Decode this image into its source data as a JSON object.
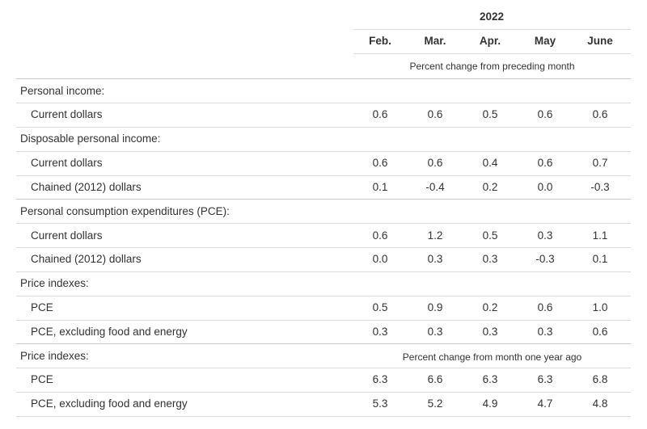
{
  "header": {
    "year": "2022",
    "months": [
      "Feb.",
      "Mar.",
      "Apr.",
      "May",
      "June"
    ],
    "subheader_mom": "Percent change from preceding month",
    "subheader_yoy": "Percent change from month one year ago"
  },
  "rows": [
    {
      "label": "Personal income:",
      "values": []
    },
    {
      "label": "Current dollars",
      "values": [
        "0.6",
        "0.6",
        "0.5",
        "0.6",
        "0.6"
      ]
    },
    {
      "label": "Disposable personal income:",
      "values": []
    },
    {
      "label": "Current dollars",
      "values": [
        "0.6",
        "0.6",
        "0.4",
        "0.6",
        "0.7"
      ]
    },
    {
      "label": "Chained (2012) dollars",
      "values": [
        "0.1",
        "-0.4",
        "0.2",
        "0.0",
        "-0.3"
      ]
    },
    {
      "label": "Personal consumption expenditures (PCE):",
      "values": []
    },
    {
      "label": "Current dollars",
      "values": [
        "0.6",
        "1.2",
        "0.5",
        "0.3",
        "1.1"
      ]
    },
    {
      "label": "Chained (2012) dollars",
      "values": [
        "0.0",
        "0.3",
        "0.3",
        "-0.3",
        "0.1"
      ]
    },
    {
      "label": "Price indexes:",
      "values": []
    },
    {
      "label": "PCE",
      "values": [
        "0.5",
        "0.9",
        "0.2",
        "0.6",
        "1.0"
      ]
    },
    {
      "label": "PCE, excluding food and energy",
      "values": [
        "0.3",
        "0.3",
        "0.3",
        "0.3",
        "0.6"
      ]
    },
    {
      "label": "Price indexes:",
      "values": []
    },
    {
      "label": "PCE",
      "values": [
        "6.3",
        "6.6",
        "6.3",
        "6.3",
        "6.8"
      ]
    },
    {
      "label": "PCE, excluding food and energy",
      "values": [
        "5.3",
        "5.2",
        "4.9",
        "4.7",
        "4.8"
      ]
    }
  ]
}
